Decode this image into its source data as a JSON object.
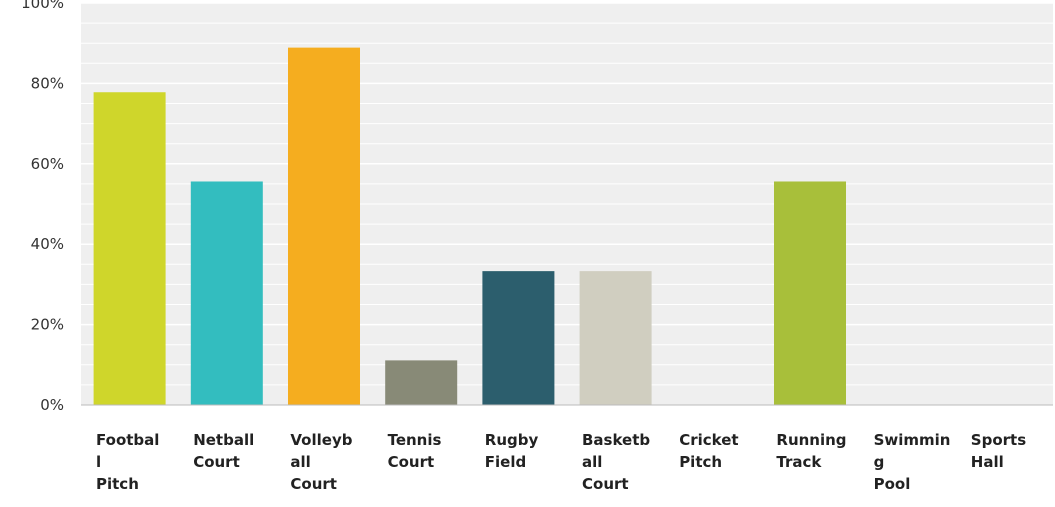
{
  "chart_data": {
    "type": "bar",
    "categories": [
      "Footbal l Pitch",
      "Netball Court",
      "Volleyb all Court",
      "Tennis Court",
      "Rugby Field",
      "Basketb all Court",
      "Cricket Pitch",
      "Running Track",
      "Swimmin g Pool",
      "Sports Hall"
    ],
    "category_lines": [
      [
        "Footbal",
        "l",
        "Pitch"
      ],
      [
        "Netball",
        "Court"
      ],
      [
        "Volleyb",
        "all",
        "Court"
      ],
      [
        "Tennis",
        "Court"
      ],
      [
        "Rugby",
        "Field"
      ],
      [
        "Basketb",
        "all",
        "Court"
      ],
      [
        "Cricket",
        "Pitch"
      ],
      [
        "Running",
        "Track"
      ],
      [
        "Swimmin",
        "g",
        "Pool"
      ],
      [
        "Sports",
        "Hall"
      ]
    ],
    "values": [
      77.8,
      55.6,
      88.9,
      11.1,
      33.3,
      33.3,
      0,
      55.6,
      0,
      0
    ],
    "colors": [
      "#cfd62b",
      "#33bdbf",
      "#f5ad1f",
      "#888a77",
      "#2c5e6d",
      "#d0cec0",
      "#7fb539",
      "#a8bf3a",
      "#999999",
      "#999999"
    ],
    "ylim": [
      0,
      100
    ],
    "yticks": [
      0,
      20,
      40,
      60,
      80,
      100
    ],
    "ytick_labels": [
      "0%",
      "20%",
      "40%",
      "60%",
      "80%",
      "100%"
    ],
    "grid": true,
    "background": "#efefef",
    "xlabel": "",
    "ylabel": "",
    "title": ""
  }
}
